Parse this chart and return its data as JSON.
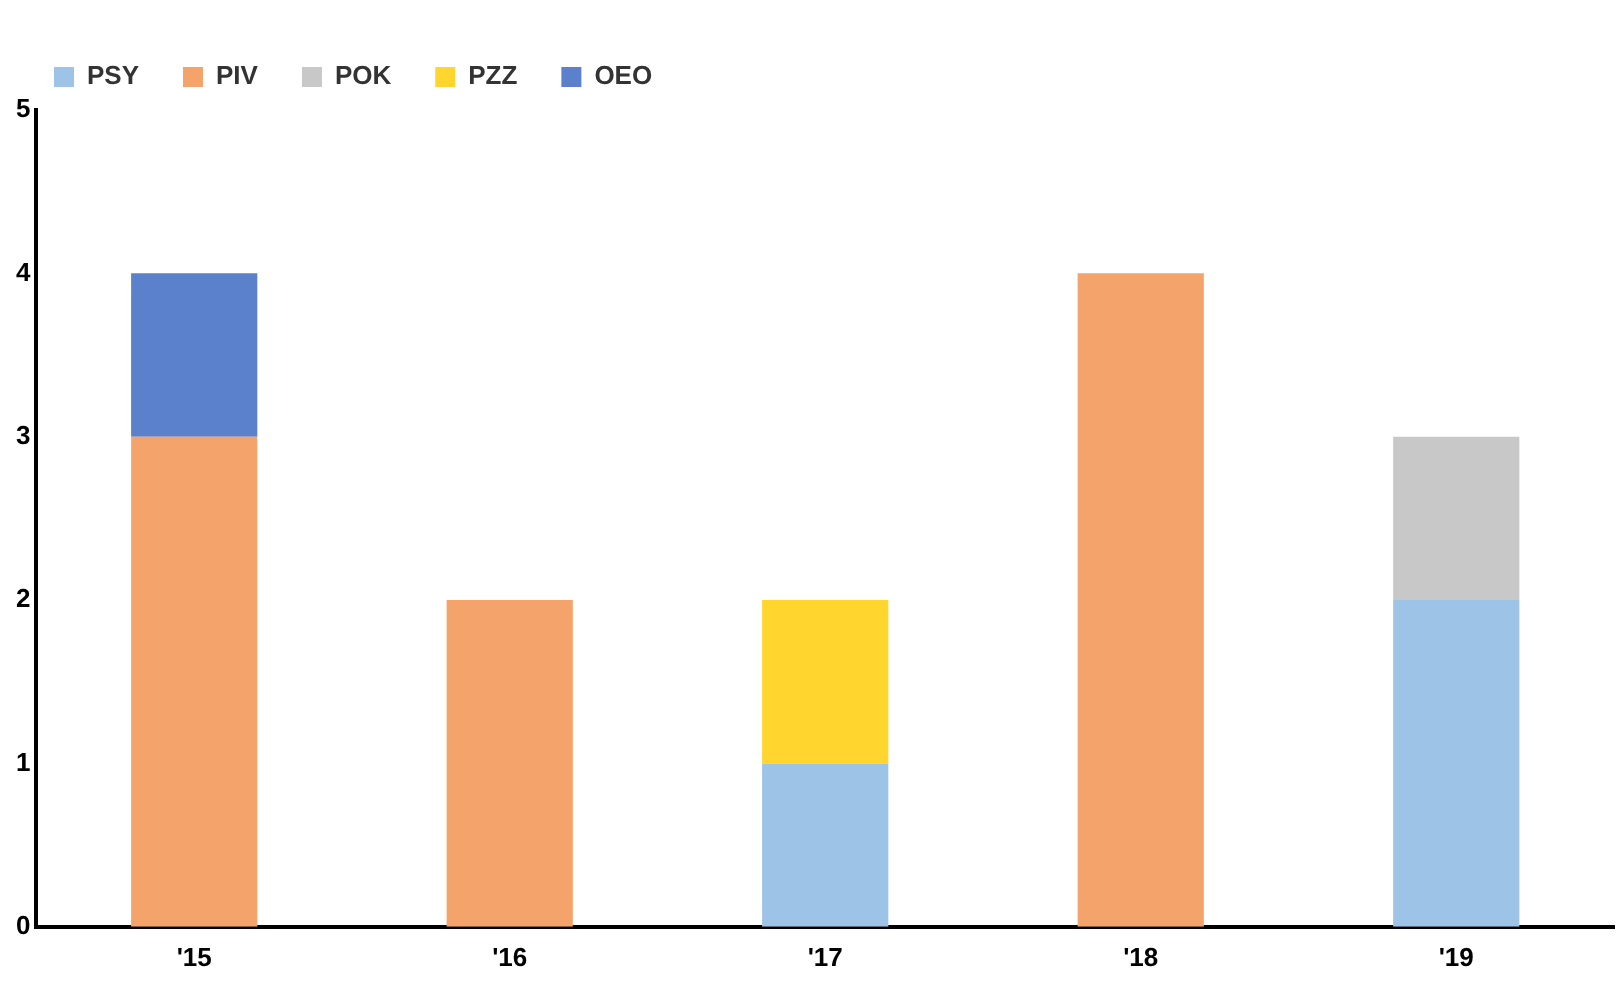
{
  "chart_data": {
    "type": "bar",
    "stacked": true,
    "categories": [
      "'15",
      "'16",
      "'17",
      "'18",
      "'19"
    ],
    "series": [
      {
        "name": "PSY",
        "color": "#9dc3e6",
        "values": [
          null,
          null,
          1,
          null,
          2
        ]
      },
      {
        "name": "PIV",
        "color": "#f4a46a",
        "values": [
          3,
          2,
          null,
          4,
          null
        ]
      },
      {
        "name": "POK",
        "color": "#c8c8c8",
        "values": [
          null,
          null,
          null,
          null,
          1
        ]
      },
      {
        "name": "PZZ",
        "color": "#ffd52e",
        "values": [
          null,
          null,
          1,
          null,
          null
        ]
      },
      {
        "name": "OEO",
        "color": "#5b80cc",
        "values": [
          1,
          null,
          null,
          null,
          null
        ]
      }
    ],
    "ylim": [
      0,
      5
    ],
    "yticks": [
      0,
      1,
      2,
      3,
      4,
      5
    ],
    "grid": false,
    "legend": "top left"
  }
}
